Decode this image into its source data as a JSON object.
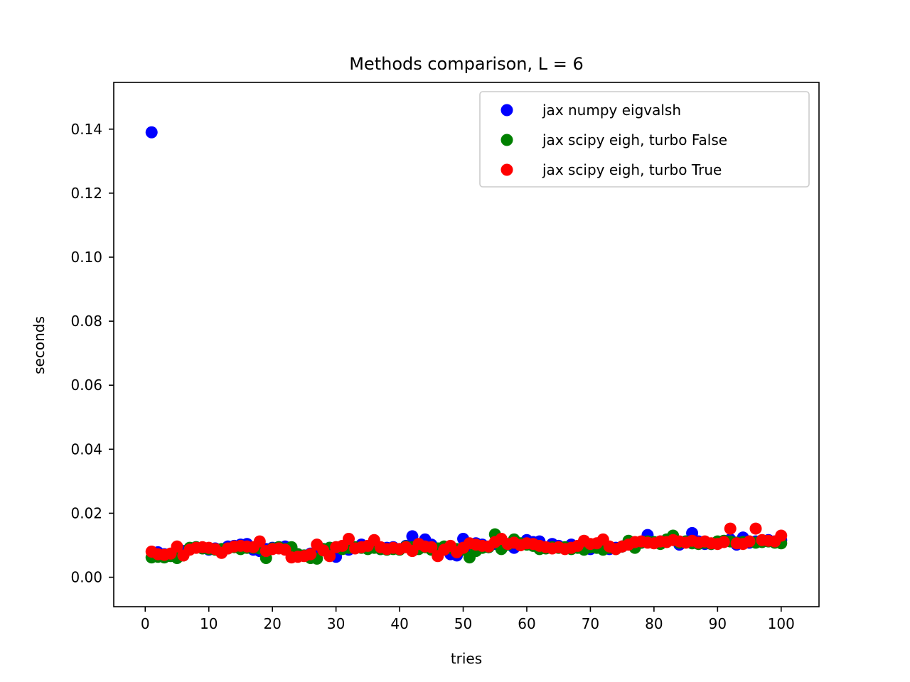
{
  "chart_data": {
    "type": "scatter",
    "title": "Methods comparison, L = 6",
    "xlabel": "tries",
    "ylabel": "seconds",
    "xlim": [
      -4.95,
      105.95
    ],
    "ylim": [
      -0.0092,
      0.1546
    ],
    "xticks": [
      0,
      10,
      20,
      30,
      40,
      50,
      60,
      70,
      80,
      90,
      100
    ],
    "xtick_labels": [
      "0",
      "10",
      "20",
      "30",
      "40",
      "50",
      "60",
      "70",
      "80",
      "90",
      "100"
    ],
    "yticks": [
      0.0,
      0.02,
      0.04,
      0.06,
      0.08,
      0.1,
      0.12,
      0.14
    ],
    "ytick_labels": [
      "0.00",
      "0.02",
      "0.04",
      "0.06",
      "0.08",
      "0.10",
      "0.12",
      "0.14"
    ],
    "legend_position": "top-right",
    "x": [
      1,
      2,
      3,
      4,
      5,
      6,
      7,
      8,
      9,
      10,
      11,
      12,
      13,
      14,
      15,
      16,
      17,
      18,
      19,
      20,
      21,
      22,
      23,
      24,
      25,
      26,
      27,
      28,
      29,
      30,
      31,
      32,
      33,
      34,
      35,
      36,
      37,
      38,
      39,
      40,
      41,
      42,
      43,
      44,
      45,
      46,
      47,
      48,
      49,
      50,
      51,
      52,
      53,
      54,
      55,
      56,
      57,
      58,
      59,
      60,
      61,
      62,
      63,
      64,
      65,
      66,
      67,
      68,
      69,
      70,
      71,
      72,
      73,
      74,
      75,
      76,
      77,
      78,
      79,
      80,
      81,
      82,
      83,
      84,
      85,
      86,
      87,
      88,
      89,
      90,
      91,
      92,
      93,
      94,
      95,
      96,
      97,
      98,
      99,
      100
    ],
    "series": [
      {
        "name": "jax numpy eigvalsh",
        "color": "#0000ff",
        "values": [
          0.139,
          0.0078,
          0.0072,
          0.0068,
          0.0075,
          0.0082,
          0.0088,
          0.0094,
          0.0092,
          0.0086,
          0.009,
          0.0084,
          0.0096,
          0.0098,
          0.0102,
          0.0104,
          0.0086,
          0.0082,
          0.0088,
          0.0092,
          0.0094,
          0.0096,
          0.009,
          0.0072,
          0.0068,
          0.0074,
          0.0078,
          0.0088,
          0.0092,
          0.0064,
          0.0094,
          0.0086,
          0.0092,
          0.0102,
          0.0096,
          0.0098,
          0.0088,
          0.0092,
          0.0094,
          0.0088,
          0.0098,
          0.0128,
          0.0094,
          0.0118,
          0.0102,
          0.0082,
          0.0088,
          0.0072,
          0.0068,
          0.012,
          0.0098,
          0.0106,
          0.0102,
          0.0094,
          0.0104,
          0.0098,
          0.0102,
          0.0092,
          0.0104,
          0.0116,
          0.011,
          0.0112,
          0.0092,
          0.0104,
          0.0098,
          0.0092,
          0.0102,
          0.0094,
          0.0098,
          0.0088,
          0.0094,
          0.0102,
          0.0088,
          0.0092,
          0.0096,
          0.0102,
          0.0094,
          0.0108,
          0.0132,
          0.0108,
          0.0112,
          0.0116,
          0.0118,
          0.0102,
          0.0112,
          0.0138,
          0.0112,
          0.0104,
          0.0104,
          0.011,
          0.0112,
          0.0118,
          0.0102,
          0.0124,
          0.0108,
          0.0112,
          0.0114,
          0.0116,
          0.0112,
          0.0116
        ]
      },
      {
        "name": "jax scipy eigh, turbo False",
        "color": "#008000",
        "values": [
          0.0062,
          0.0064,
          0.0062,
          0.0066,
          0.006,
          0.0068,
          0.0092,
          0.0094,
          0.009,
          0.0088,
          0.0086,
          0.0088,
          0.009,
          0.0094,
          0.0088,
          0.0092,
          0.0092,
          0.009,
          0.006,
          0.009,
          0.0094,
          0.0088,
          0.0094,
          0.0072,
          0.0068,
          0.006,
          0.0058,
          0.0088,
          0.0092,
          0.0094,
          0.0088,
          0.0092,
          0.0094,
          0.0092,
          0.0088,
          0.0092,
          0.0088,
          0.0086,
          0.0088,
          0.0086,
          0.0096,
          0.0094,
          0.0088,
          0.0094,
          0.0086,
          0.009,
          0.0096,
          0.0092,
          0.0088,
          0.0086,
          0.0062,
          0.0082,
          0.0092,
          0.0094,
          0.0134,
          0.0088,
          0.0102,
          0.0118,
          0.0106,
          0.0102,
          0.0098,
          0.0088,
          0.009,
          0.0094,
          0.0092,
          0.0094,
          0.0088,
          0.0092,
          0.0086,
          0.0094,
          0.0092,
          0.0086,
          0.0092,
          0.0088,
          0.0096,
          0.0114,
          0.0092,
          0.0108,
          0.0112,
          0.011,
          0.0104,
          0.0118,
          0.013,
          0.0108,
          0.0112,
          0.0106,
          0.0104,
          0.0108,
          0.0104,
          0.0112,
          0.0114,
          0.0112,
          0.0108,
          0.011,
          0.0112,
          0.0108,
          0.011,
          0.0112,
          0.0108,
          0.0106
        ]
      },
      {
        "name": "jax scipy eigh, turbo True",
        "color": "#ff0000",
        "values": [
          0.008,
          0.0072,
          0.007,
          0.0074,
          0.0096,
          0.0068,
          0.0086,
          0.0092,
          0.0094,
          0.0092,
          0.0088,
          0.0076,
          0.009,
          0.0096,
          0.0098,
          0.0096,
          0.0094,
          0.0112,
          0.0082,
          0.0088,
          0.009,
          0.0086,
          0.0062,
          0.0064,
          0.0066,
          0.0072,
          0.0102,
          0.0084,
          0.0066,
          0.0094,
          0.0098,
          0.012,
          0.009,
          0.0094,
          0.0098,
          0.0116,
          0.0094,
          0.0088,
          0.0092,
          0.0088,
          0.0094,
          0.0082,
          0.0104,
          0.0096,
          0.0094,
          0.0066,
          0.0086,
          0.0098,
          0.0078,
          0.0092,
          0.0106,
          0.0102,
          0.0098,
          0.0096,
          0.011,
          0.012,
          0.0104,
          0.0108,
          0.01,
          0.0106,
          0.0104,
          0.0098,
          0.0094,
          0.009,
          0.0094,
          0.0088,
          0.0092,
          0.0098,
          0.0114,
          0.0104,
          0.0106,
          0.0118,
          0.0096,
          0.0088,
          0.0096,
          0.0102,
          0.011,
          0.0112,
          0.0108,
          0.0106,
          0.0112,
          0.011,
          0.0116,
          0.0112,
          0.0108,
          0.0114,
          0.0108,
          0.0112,
          0.0106,
          0.0104,
          0.011,
          0.0152,
          0.0106,
          0.0104,
          0.0112,
          0.0152,
          0.0116,
          0.0114,
          0.0112,
          0.013
        ]
      }
    ]
  }
}
